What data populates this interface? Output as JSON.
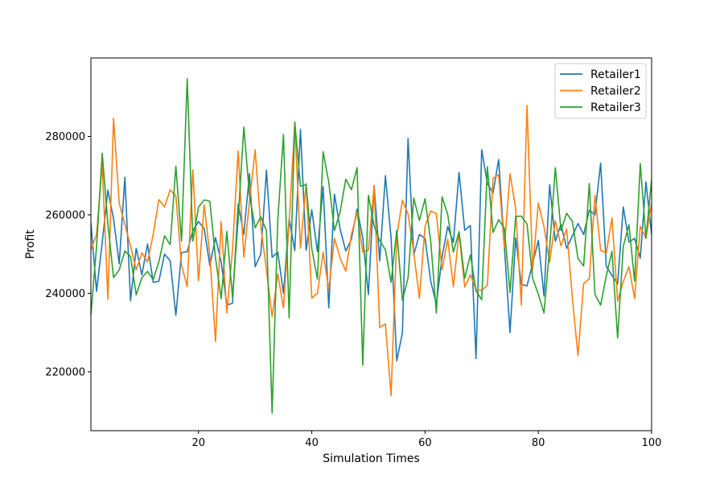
{
  "chart_data": {
    "type": "line",
    "title": "",
    "xlabel": "Simulation Times",
    "ylabel": "Profit",
    "xlim": [
      1,
      100
    ],
    "ylim": [
      205000,
      300000
    ],
    "x_ticks": [
      20,
      40,
      60,
      80,
      100
    ],
    "y_ticks": [
      220000,
      240000,
      260000,
      280000
    ],
    "grid": false,
    "legend_position": "top-right",
    "x": [
      1,
      2,
      3,
      4,
      5,
      6,
      7,
      8,
      9,
      10,
      11,
      12,
      13,
      14,
      15,
      16,
      17,
      18,
      19,
      20,
      21,
      22,
      23,
      24,
      25,
      26,
      27,
      28,
      29,
      30,
      31,
      32,
      33,
      34,
      35,
      36,
      37,
      38,
      39,
      40,
      41,
      42,
      43,
      44,
      45,
      46,
      47,
      48,
      49,
      50,
      51,
      52,
      53,
      54,
      55,
      56,
      57,
      58,
      59,
      60,
      61,
      62,
      63,
      64,
      65,
      66,
      67,
      68,
      69,
      70,
      71,
      72,
      73,
      74,
      75,
      76,
      77,
      78,
      79,
      80,
      81,
      82,
      83,
      84,
      85,
      86,
      87,
      88,
      89,
      90,
      91,
      92,
      93,
      94,
      95,
      96,
      97,
      98,
      99,
      100
    ],
    "series": [
      {
        "name": "Retailer1",
        "color": "#1f77b4",
        "values": [
          258000,
          240500,
          253000,
          266300,
          259000,
          247500,
          269600,
          238100,
          251500,
          244700,
          252600,
          242800,
          243100,
          250000,
          248300,
          234400,
          250400,
          250600,
          256000,
          258300,
          256500,
          247100,
          254200,
          248000,
          237000,
          237500,
          262700,
          255000,
          270500,
          246800,
          250000,
          271400,
          249200,
          250500,
          240000,
          259000,
          250900,
          281800,
          251000,
          261300,
          250600,
          267200,
          236300,
          265300,
          256400,
          250800,
          253800,
          261500,
          254200,
          239700,
          267500,
          248300,
          270000,
          254100,
          222800,
          229900,
          279500,
          249800,
          255000,
          254000,
          243100,
          237200,
          249300,
          257000,
          253000,
          270800,
          256100,
          257300,
          223400,
          276600,
          268000,
          265600,
          274100,
          252000,
          230000,
          254100,
          242300,
          241900,
          247600,
          253500,
          239300,
          267700,
          253300,
          257600,
          251500,
          254600,
          257800,
          255000,
          261200,
          260000,
          273200,
          246900,
          244600,
          242400,
          262000,
          253100,
          254000,
          249000,
          268400,
          255000
        ]
      },
      {
        "name": "Retailer2",
        "color": "#ff7f0e",
        "values": [
          251000,
          255000,
          273000,
          238500,
          284600,
          263000,
          257600,
          252000,
          246000,
          250300,
          248000,
          255000,
          263900,
          262000,
          266400,
          264800,
          247300,
          241700,
          271500,
          243200,
          262600,
          249800,
          227700,
          258300,
          235000,
          251000,
          276300,
          249200,
          263400,
          276600,
          257000,
          246000,
          234000,
          245000,
          236300,
          258000,
          283300,
          251500,
          268000,
          238800,
          240000,
          250500,
          241000,
          254000,
          249000,
          245700,
          255000,
          260600,
          250500,
          251000,
          267300,
          231300,
          232200,
          213900,
          254600,
          263700,
          260200,
          250500,
          238800,
          257000,
          261000,
          260300,
          246000,
          253800,
          241700,
          255500,
          241600,
          244700,
          241000,
          240800,
          242000,
          269300,
          270200,
          251500,
          270500,
          261600,
          237000,
          287900,
          246000,
          263000,
          257000,
          247900,
          258500,
          252100,
          256400,
          239000,
          224200,
          242500,
          243700,
          265000,
          251000,
          250300,
          259200,
          238000,
          243000,
          246800,
          238700,
          257100,
          254100,
          263000
        ]
      },
      {
        "name": "Retailer3",
        "color": "#2ca02c",
        "values": [
          234500,
          252000,
          275700,
          257600,
          244000,
          246000,
          250800,
          249400,
          239600,
          244000,
          245600,
          243500,
          248000,
          254700,
          252400,
          272400,
          253300,
          294700,
          253300,
          262000,
          263800,
          263500,
          249000,
          238600,
          255800,
          239000,
          258900,
          282400,
          265000,
          256700,
          259500,
          256000,
          209500,
          258700,
          280500,
          233800,
          283700,
          267300,
          267700,
          251400,
          243600,
          276100,
          268300,
          256000,
          260700,
          269100,
          266400,
          272000,
          221700,
          265000,
          257200,
          253400,
          251100,
          242800,
          256000,
          238200,
          243900,
          264300,
          258600,
          264100,
          253300,
          235000,
          264600,
          260100,
          250500,
          255700,
          243800,
          249800,
          240600,
          238400,
          272300,
          255500,
          258800,
          256600,
          240200,
          259600,
          259700,
          257700,
          243800,
          239800,
          235000,
          251700,
          272000,
          256000,
          260400,
          258400,
          248900,
          247000,
          268000,
          239700,
          237000,
          244500,
          250700,
          228600,
          252000,
          257500,
          243100,
          273100,
          254000,
          269000
        ]
      }
    ]
  }
}
